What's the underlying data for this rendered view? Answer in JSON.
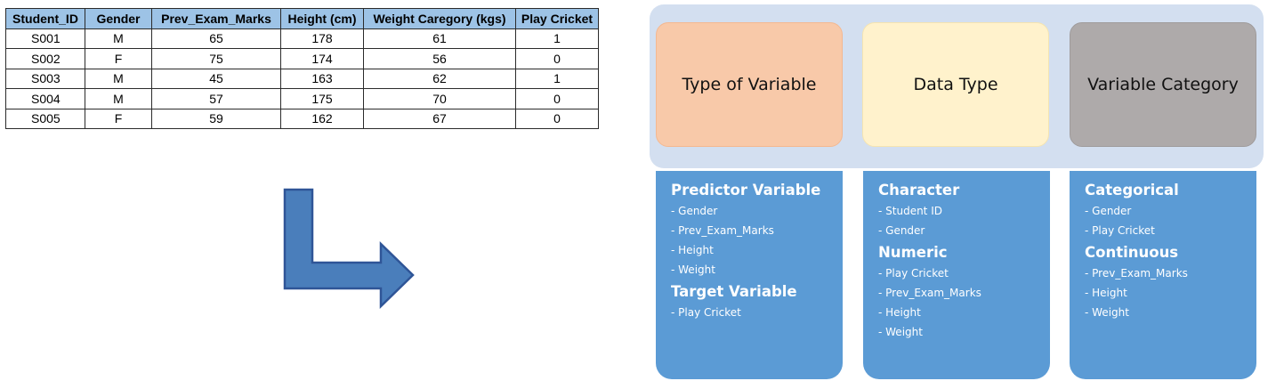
{
  "table": {
    "headers": [
      "Student_ID",
      "Gender",
      "Prev_Exam_Marks",
      "Height (cm)",
      "Weight Caregory (kgs)",
      "Play Cricket"
    ],
    "rows": [
      [
        "S001",
        "M",
        "65",
        "178",
        "61",
        "1"
      ],
      [
        "S002",
        "F",
        "75",
        "174",
        "56",
        "0"
      ],
      [
        "S003",
        "M",
        "45",
        "163",
        "62",
        "1"
      ],
      [
        "S004",
        "M",
        "57",
        "175",
        "70",
        "0"
      ],
      [
        "S005",
        "F",
        "59",
        "162",
        "67",
        "0"
      ]
    ]
  },
  "colors": {
    "table_header": "#9dc3e6",
    "arrow_fill": "#4a7ebb",
    "arrow_stroke": "#2f5597",
    "panel_bg": "#d3dff0",
    "type_box": "#f8c9a9",
    "data_type_box": "#fff2cc",
    "category_box": "#aeaaaa",
    "detail_box": "#5b9bd5"
  },
  "diagram": {
    "headers": [
      "Type of Variable",
      "Data Type",
      "Variable Category"
    ],
    "columns": [
      {
        "groups": [
          {
            "title": "Predictor Variable",
            "items": [
              "- Gender",
              "- Prev_Exam_Marks",
              "- Height",
              "- Weight"
            ]
          },
          {
            "title": "Target Variable",
            "items": [
              "- Play Cricket"
            ]
          }
        ]
      },
      {
        "groups": [
          {
            "title": "Character",
            "items": [
              "- Student ID",
              "- Gender"
            ]
          },
          {
            "title": "Numeric",
            "items": [
              "- Play Cricket",
              "- Prev_Exam_Marks",
              "- Height",
              "- Weight"
            ]
          }
        ]
      },
      {
        "groups": [
          {
            "title": "Categorical",
            "items": [
              "- Gender",
              "- Play Cricket"
            ]
          },
          {
            "title": "Continuous",
            "items": [
              "- Prev_Exam_Marks",
              "- Height",
              "- Weight"
            ]
          }
        ]
      }
    ]
  }
}
